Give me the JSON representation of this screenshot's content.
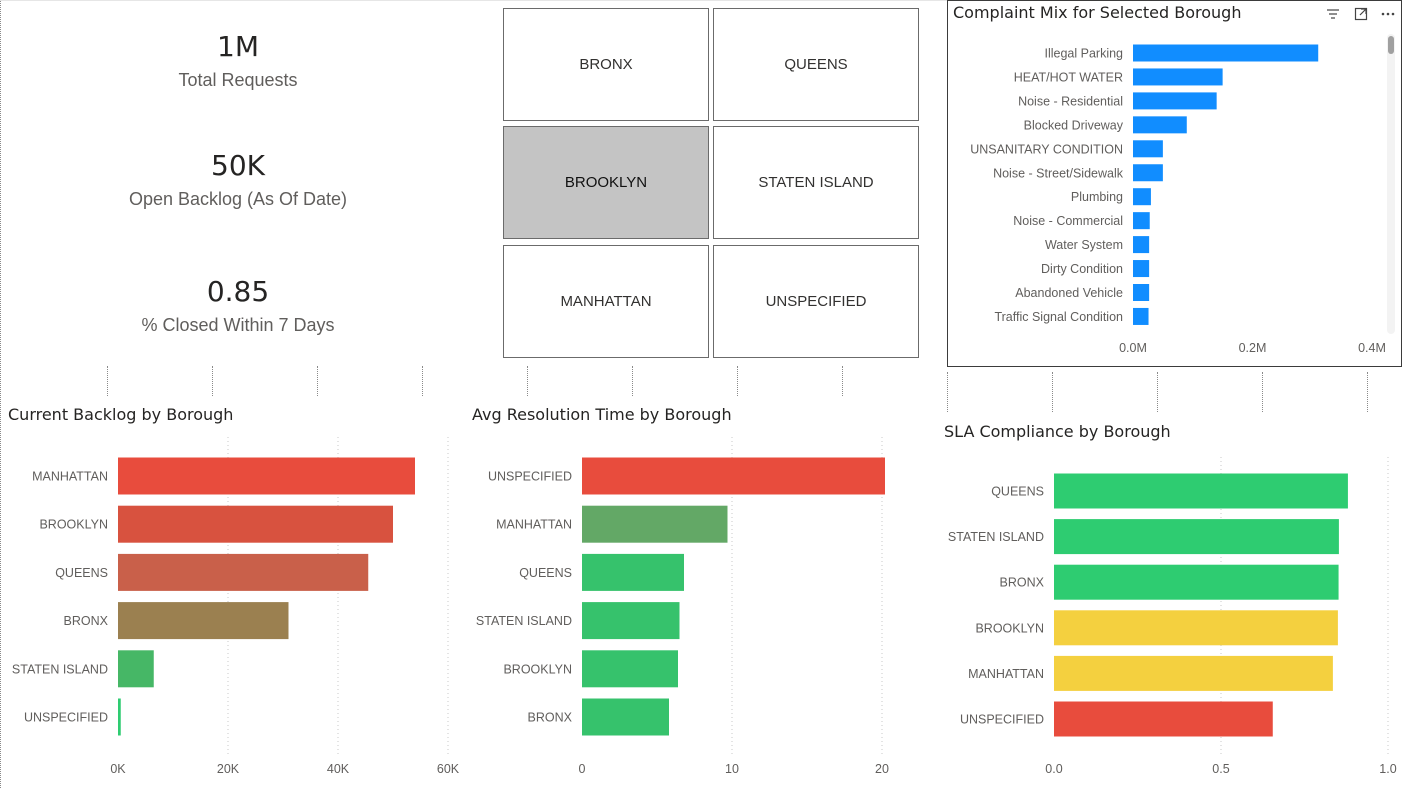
{
  "kpis": [
    {
      "value": "1M",
      "label": "Total Requests"
    },
    {
      "value": "50K",
      "label": "Open Backlog (As Of Date)"
    },
    {
      "value": "0.85",
      "label": "% Closed Within 7 Days"
    }
  ],
  "slicer": {
    "tiles": [
      "BRONX",
      "QUEENS",
      "BROOKLYN",
      "STATEN ISLAND",
      "MANHATTAN",
      "UNSPECIFIED"
    ],
    "selected": "BROOKLYN"
  },
  "complaint_mix": {
    "title": "Complaint Mix for Selected Borough",
    "icons": [
      "filter-icon",
      "focus-mode-icon",
      "more-options-icon"
    ]
  },
  "backlog": {
    "title": "Current Backlog by Borough"
  },
  "resolution": {
    "title": "Avg Resolution Time by Borough"
  },
  "sla": {
    "title": "SLA Compliance by Borough"
  },
  "chart_data": [
    {
      "id": "complaint_mix",
      "type": "bar",
      "orientation": "horizontal",
      "title": "Complaint Mix for Selected Borough",
      "categories": [
        "Illegal Parking",
        "HEAT/HOT WATER",
        "Noise - Residential",
        "Blocked Driveway",
        "UNSANITARY CONDITION",
        "Noise - Street/Sidewalk",
        "Plumbing",
        "Noise - Commercial",
        "Water System",
        "Dirty Condition",
        "Abandoned Vehicle",
        "Traffic Signal Condition"
      ],
      "values": [
        0.31,
        0.15,
        0.14,
        0.09,
        0.05,
        0.05,
        0.03,
        0.028,
        0.027,
        0.027,
        0.027,
        0.026
      ],
      "xlim": [
        0,
        0.4
      ],
      "ticks": [
        0,
        0.2,
        0.4
      ],
      "tick_labels": [
        "0.0M",
        "0.2M",
        "0.4M"
      ],
      "colors": [
        "#118dff"
      ]
    },
    {
      "id": "backlog",
      "type": "bar",
      "orientation": "horizontal",
      "title": "Current Backlog by Borough",
      "categories": [
        "MANHATTAN",
        "BROOKLYN",
        "QUEENS",
        "BRONX",
        "STATEN ISLAND",
        "UNSPECIFIED"
      ],
      "values": [
        54000,
        50000,
        45500,
        31000,
        6500,
        500
      ],
      "xlim": [
        0,
        60000
      ],
      "ticks": [
        0,
        20000,
        40000,
        60000
      ],
      "tick_labels": [
        "0K",
        "20K",
        "40K",
        "60K"
      ],
      "colors": [
        "#e84c3d",
        "#d8523f",
        "#c9604a",
        "#9b8050",
        "#46b766",
        "#2ecc71"
      ]
    },
    {
      "id": "resolution",
      "type": "bar",
      "orientation": "horizontal",
      "title": "Avg Resolution Time by Borough",
      "categories": [
        "UNSPECIFIED",
        "MANHATTAN",
        "QUEENS",
        "STATEN ISLAND",
        "BROOKLYN",
        "BRONX"
      ],
      "values": [
        20.2,
        9.7,
        6.8,
        6.5,
        6.4,
        5.8
      ],
      "xlim": [
        0,
        22
      ],
      "ticks": [
        0,
        10,
        20
      ],
      "tick_labels": [
        "0",
        "10",
        "20"
      ],
      "colors": [
        "#e84c3d",
        "#63a866",
        "#36c26c",
        "#36c26c",
        "#36c26c",
        "#36c26c"
      ]
    },
    {
      "id": "sla",
      "type": "bar",
      "orientation": "horizontal",
      "title": "SLA Compliance by Borough",
      "categories": [
        "QUEENS",
        "STATEN ISLAND",
        "BRONX",
        "BROOKLYN",
        "MANHATTAN",
        "UNSPECIFIED"
      ],
      "values": [
        0.88,
        0.853,
        0.852,
        0.85,
        0.835,
        0.655
      ],
      "xlim": [
        0,
        1.0
      ],
      "ticks": [
        0,
        0.5,
        1.0
      ],
      "tick_labels": [
        "0.0",
        "0.5",
        "1.0"
      ],
      "colors": [
        "#2ecc71",
        "#2ecc71",
        "#2ecc71",
        "#f4d03f",
        "#f4d03f",
        "#e84c3d"
      ]
    }
  ]
}
